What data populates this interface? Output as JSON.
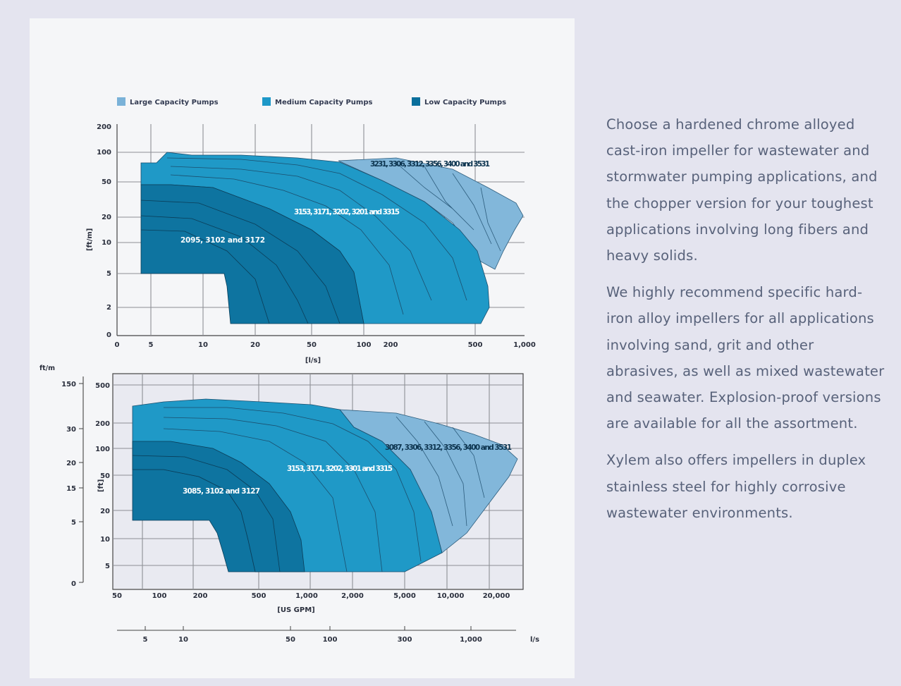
{
  "legend": {
    "items": [
      {
        "label": "Large Capacity Pumps",
        "color": "#7ab2d8"
      },
      {
        "label": "Medium Capacity Pumps",
        "color": "#1d98c8"
      },
      {
        "label": "Low Capacity Pumps",
        "color": "#0a6f9c"
      }
    ]
  },
  "colors": {
    "large": "#82b7da",
    "medium": "#1f99c7",
    "low": "#0e74a0",
    "grid": "#8d8f95",
    "text": "#58627a",
    "background": "#e4e4ef",
    "panel": "#f5f6f8"
  },
  "chart_data": [
    {
      "type": "area",
      "xlabel": "[l/s]",
      "ylabel": "[ft/m]",
      "x_ticks": [
        "0",
        "5",
        "10",
        "20",
        "50",
        "100",
        "200",
        "500",
        "1,000"
      ],
      "y_ticks": [
        "200",
        "100",
        "50",
        "20",
        "10",
        "5",
        "2",
        "0"
      ],
      "series": [
        {
          "name": "Large Capacity Pumps",
          "label": "3231, 3306, 3312, 3356, 3400 and 3531"
        },
        {
          "name": "Medium Capacity Pumps",
          "label": "3153, 3171, 3202, 3201 and 3315"
        },
        {
          "name": "Low Capacity Pumps",
          "label": "2095, 3102 and 3172"
        }
      ]
    },
    {
      "type": "area",
      "xlabel": "[US GPM]",
      "ylabel": "[ft]",
      "x_ticks": [
        "50",
        "100",
        "200",
        "500",
        "1,000",
        "2,000",
        "5,000",
        "10,000",
        "20,000"
      ],
      "y_ticks": [
        "500",
        "200",
        "100",
        "50",
        "20",
        "10",
        "5"
      ],
      "left_axis_label": "ft/m",
      "left_axis_ticks": [
        "150",
        "30",
        "20",
        "15",
        "5",
        "0"
      ],
      "secondary_x_label": "l/s",
      "secondary_x_ticks": [
        "5",
        "10",
        "50",
        "100",
        "300",
        "1,000"
      ],
      "series": [
        {
          "name": "Large Capacity Pumps",
          "label": "3087, 3306, 3312, 3356, 3400 and 3531"
        },
        {
          "name": "Medium Capacity Pumps",
          "label": "3153, 3171, 3202, 3301 and 3315"
        },
        {
          "name": "Low Capacity Pumps",
          "label": "3085, 3102 and 3127"
        }
      ]
    }
  ],
  "text": {
    "para1": "Choose a hardened chrome alloyed cast-iron impeller for wastewater and stormwater pumping applications, and the chopper version for your toughest applications involving long fibers and heavy solids.",
    "para2": "We highly recommend specific hard-iron alloy impellers for all applications involving sand, grit and other abrasives, as well as mixed wastewater and seawater. Explosion-proof versions are available for all the assortment.",
    "para3": "Xylem also offers impellers in duplex stainless steel for highly corrosive wastewater environments."
  }
}
